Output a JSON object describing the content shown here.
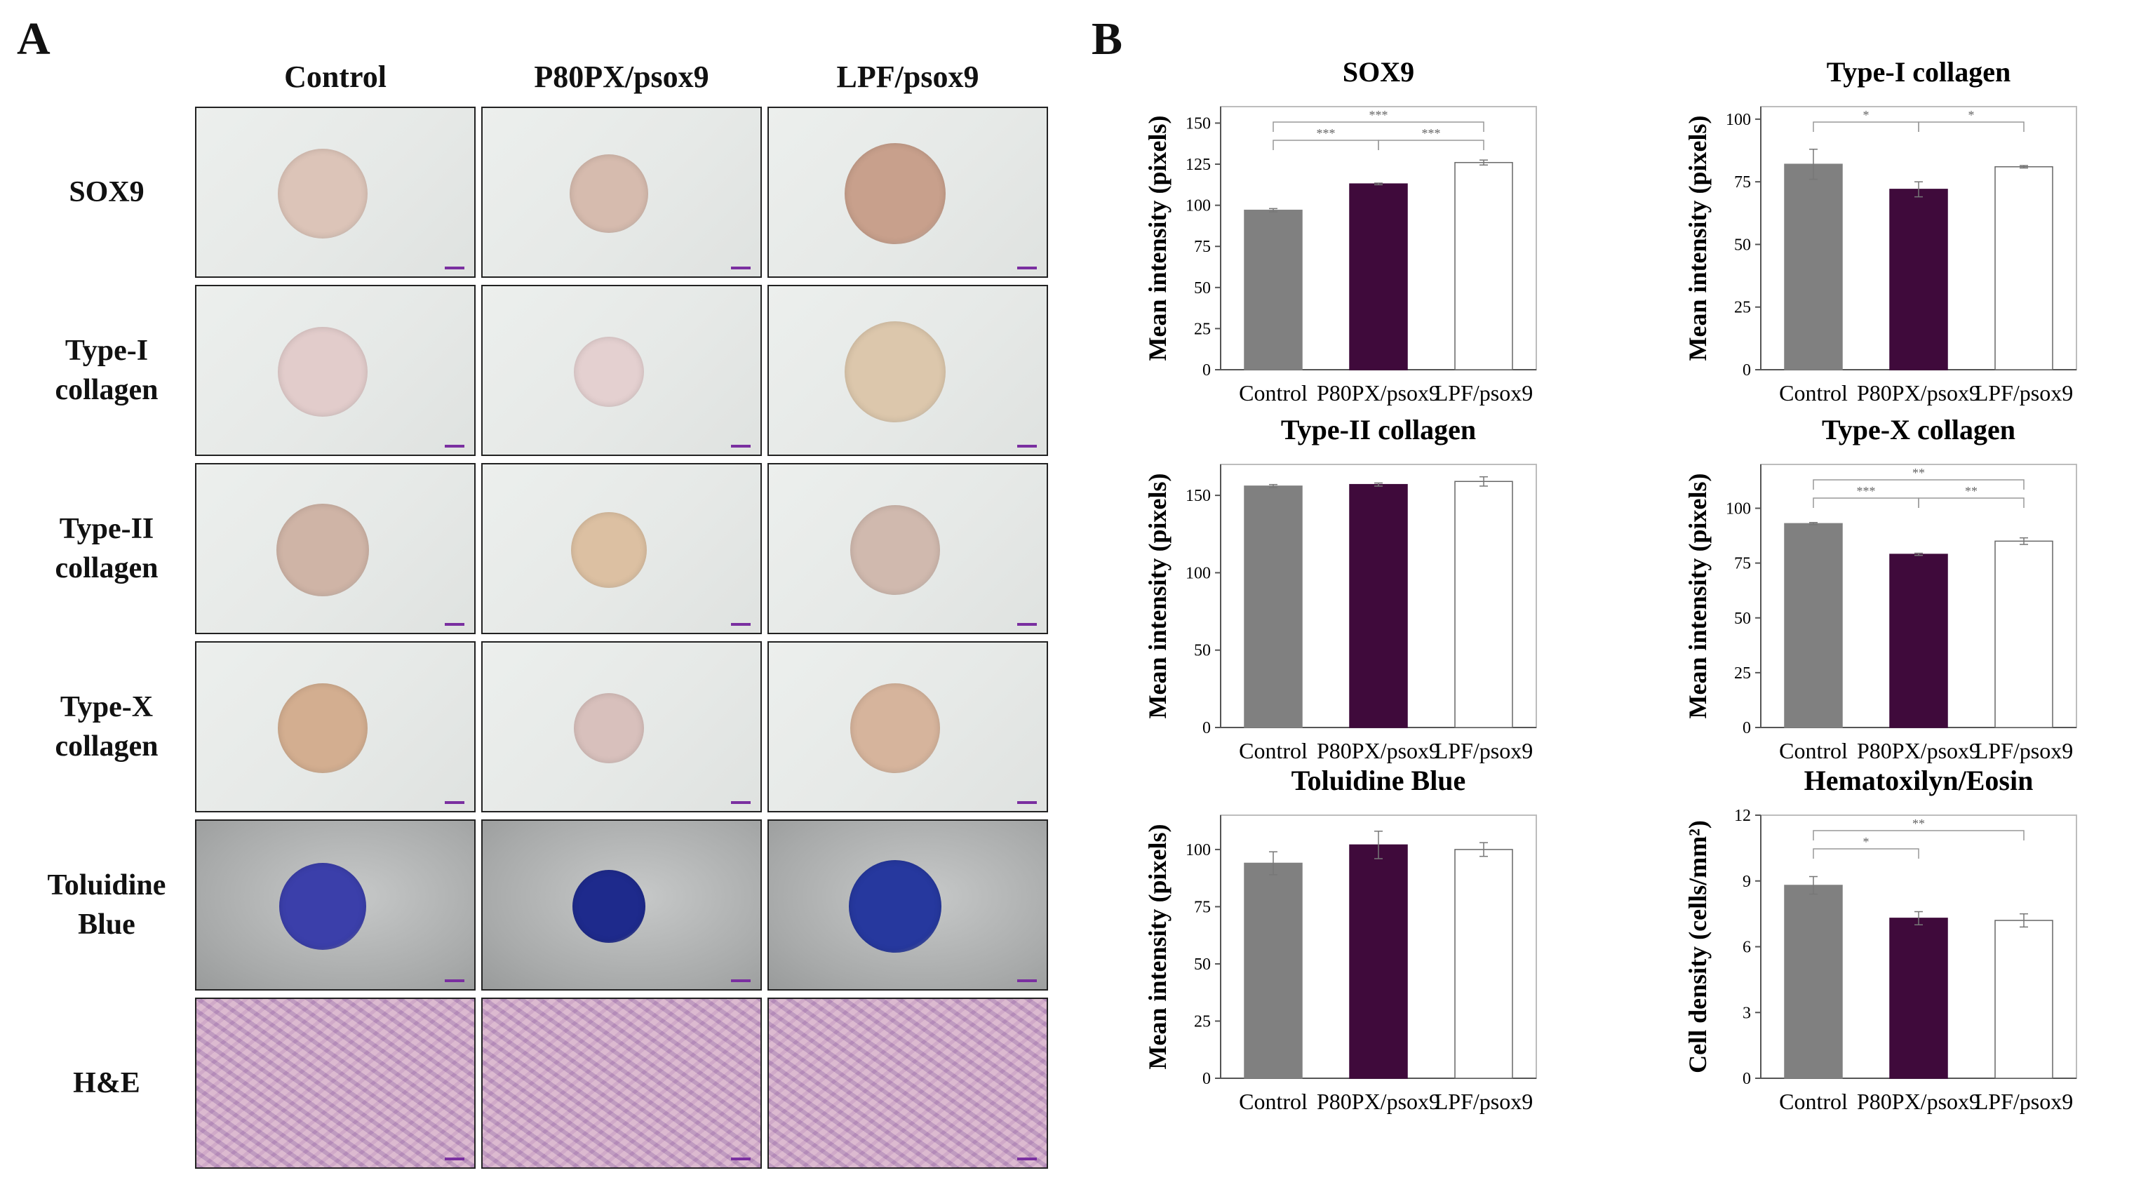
{
  "panels": {
    "a_label": "A",
    "b_label": "B"
  },
  "image_grid": {
    "columns": [
      "Control",
      "P80PX/psox9",
      "LPF/psox9"
    ],
    "rows": [
      {
        "label_lines": [
          "SOX9"
        ],
        "style": "plain",
        "disc_colors": [
          "#dcc4b8",
          "#d6bbae",
          "#c8a08c"
        ]
      },
      {
        "label_lines": [
          "Type-I",
          "collagen"
        ],
        "style": "plain",
        "disc_colors": [
          "#e2cccb",
          "#e4d0d0",
          "#dcc7ac"
        ]
      },
      {
        "label_lines": [
          "Type-II",
          "collagen"
        ],
        "style": "plain",
        "disc_colors": [
          "#cfb4a6",
          "#dcc0a2",
          "#d0b9ae"
        ]
      },
      {
        "label_lines": [
          "Type-X",
          "collagen"
        ],
        "style": "plain",
        "disc_colors": [
          "#d3ae90",
          "#d8c0bc",
          "#d6b49c"
        ]
      },
      {
        "label_lines": [
          "Toluidine",
          "Blue"
        ],
        "style": "gray",
        "disc_colors": [
          "#3b3faa",
          "#1e2a8c",
          "#26389e"
        ]
      },
      {
        "label_lines": [
          "H&E"
        ],
        "style": "he",
        "disc_colors": []
      }
    ]
  },
  "colors": {
    "Control": "#808080",
    "P80PX/psox9": "#3f0a3b",
    "LPF/psox9": "#ffffff"
  },
  "chart_data": [
    {
      "type": "bar",
      "title": "SOX9",
      "ylabel": "Mean intensity (pixels)",
      "categories": [
        "Control",
        "P80PX/psox9",
        "LPF/psox9"
      ],
      "values": [
        97,
        113,
        126
      ],
      "errors": [
        1,
        0.5,
        1.5
      ],
      "ylim": [
        0,
        160
      ],
      "yticks": [
        0,
        25,
        50,
        75,
        100,
        125,
        150
      ],
      "significance": [
        {
          "from": 0,
          "to": 2,
          "label": "***",
          "level": 0
        },
        {
          "from": 0,
          "to": 1,
          "label": "***",
          "level": 1
        },
        {
          "from": 1,
          "to": 2,
          "label": "***",
          "level": 1
        }
      ]
    },
    {
      "type": "bar",
      "title": "Type-I collagen",
      "ylabel": "Mean intensity (pixels)",
      "categories": [
        "Control",
        "P80PX/psox9",
        "LPF/psox9"
      ],
      "values": [
        82,
        72,
        81
      ],
      "errors": [
        6,
        3,
        0.5
      ],
      "ylim": [
        0,
        105
      ],
      "yticks": [
        0,
        25,
        50,
        75,
        100
      ],
      "significance": [
        {
          "from": 0,
          "to": 1,
          "label": "*",
          "level": 0
        },
        {
          "from": 1,
          "to": 2,
          "label": "*",
          "level": 0
        }
      ]
    },
    {
      "type": "bar",
      "title": "Type-II collagen",
      "ylabel": "Mean intensity (pixels)",
      "categories": [
        "Control",
        "P80PX/psox9",
        "LPF/psox9"
      ],
      "values": [
        156,
        157,
        159
      ],
      "errors": [
        1,
        1,
        3
      ],
      "ylim": [
        0,
        170
      ],
      "yticks": [
        0,
        50,
        100,
        150
      ],
      "significance": []
    },
    {
      "type": "bar",
      "title": "Type-X collagen",
      "ylabel": "Mean intensity (pixels)",
      "categories": [
        "Control",
        "P80PX/psox9",
        "LPF/psox9"
      ],
      "values": [
        93,
        79,
        85
      ],
      "errors": [
        0.5,
        0.5,
        1.5
      ],
      "ylim": [
        0,
        120
      ],
      "yticks": [
        0,
        25,
        50,
        75,
        100
      ],
      "significance": [
        {
          "from": 0,
          "to": 2,
          "label": "**",
          "level": 0
        },
        {
          "from": 0,
          "to": 1,
          "label": "***",
          "level": 1
        },
        {
          "from": 1,
          "to": 2,
          "label": "**",
          "level": 1
        }
      ]
    },
    {
      "type": "bar",
      "title": "Toluidine Blue",
      "ylabel": "Mean intensity (pixels)",
      "categories": [
        "Control",
        "P80PX/psox9",
        "LPF/psox9"
      ],
      "values": [
        94,
        102,
        100
      ],
      "errors": [
        5,
        6,
        3
      ],
      "ylim": [
        0,
        115
      ],
      "yticks": [
        0,
        25,
        50,
        75,
        100
      ],
      "significance": []
    },
    {
      "type": "bar",
      "title": "Hematoxilyn/Eosin",
      "ylabel": "Cell density (cells/mm²)",
      "categories": [
        "Control",
        "P80PX/psox9",
        "LPF/psox9"
      ],
      "values": [
        8.8,
        7.3,
        7.2
      ],
      "errors": [
        0.4,
        0.3,
        0.3
      ],
      "ylim": [
        0,
        12
      ],
      "yticks": [
        0,
        3,
        6,
        9,
        12
      ],
      "significance": [
        {
          "from": 0,
          "to": 2,
          "label": "**",
          "level": 0
        },
        {
          "from": 0,
          "to": 1,
          "label": "*",
          "level": 1
        }
      ]
    }
  ]
}
